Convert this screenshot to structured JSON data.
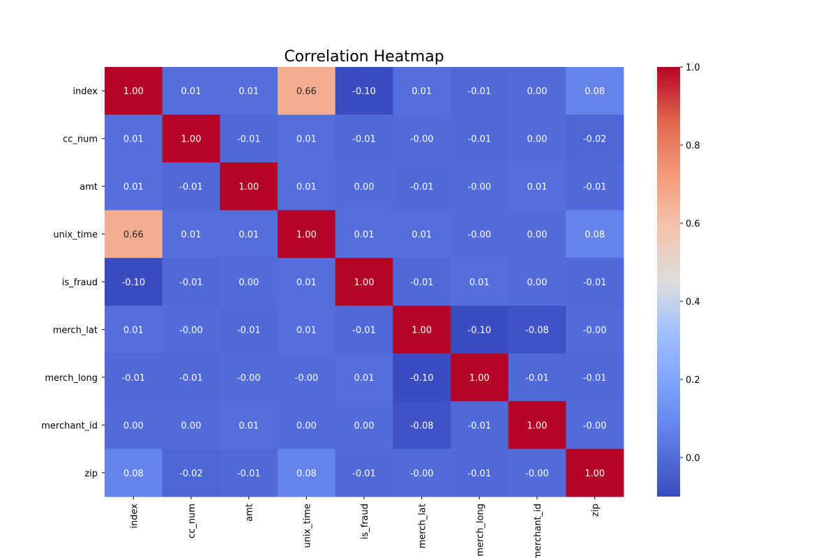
{
  "chart_data": {
    "type": "heatmap",
    "title": "Correlation Heatmap",
    "xlabel": "",
    "ylabel": "",
    "colormap": "coolwarm",
    "value_range": [
      -0.1,
      1.0
    ],
    "colorbar_ticks": [
      "0.0",
      "0.2",
      "0.4",
      "0.6",
      "0.8",
      "1.0"
    ],
    "colorbar_tick_values": [
      0.0,
      0.2,
      0.4,
      0.6,
      0.8,
      1.0
    ],
    "labels": [
      "index",
      "cc_num",
      "amt",
      "unix_time",
      "is_fraud",
      "merch_lat",
      "merch_long",
      "merchant_id",
      "zip"
    ],
    "cells": [
      [
        "1.00",
        "0.01",
        "0.01",
        "0.66",
        "-0.10",
        "0.01",
        "-0.01",
        "0.00",
        "0.08"
      ],
      [
        "0.01",
        "1.00",
        "-0.01",
        "0.01",
        "-0.01",
        "-0.00",
        "-0.01",
        "0.00",
        "-0.02"
      ],
      [
        "0.01",
        "-0.01",
        "1.00",
        "0.01",
        "0.00",
        "-0.01",
        "-0.00",
        "0.01",
        "-0.01"
      ],
      [
        "0.66",
        "0.01",
        "0.01",
        "1.00",
        "0.01",
        "0.01",
        "-0.00",
        "0.00",
        "0.08"
      ],
      [
        "-0.10",
        "-0.01",
        "0.00",
        "0.01",
        "1.00",
        "-0.01",
        "0.01",
        "0.00",
        "-0.01"
      ],
      [
        "0.01",
        "-0.00",
        "-0.01",
        "0.01",
        "-0.01",
        "1.00",
        "-0.10",
        "-0.08",
        "-0.00"
      ],
      [
        "-0.01",
        "-0.01",
        "-0.00",
        "-0.00",
        "0.01",
        "-0.10",
        "1.00",
        "-0.01",
        "-0.01"
      ],
      [
        "0.00",
        "0.00",
        "0.01",
        "0.00",
        "0.00",
        "-0.08",
        "-0.01",
        "1.00",
        "-0.00"
      ],
      [
        "0.08",
        "-0.02",
        "-0.01",
        "0.08",
        "-0.01",
        "-0.00",
        "-0.01",
        "-0.00",
        "1.00"
      ]
    ]
  }
}
